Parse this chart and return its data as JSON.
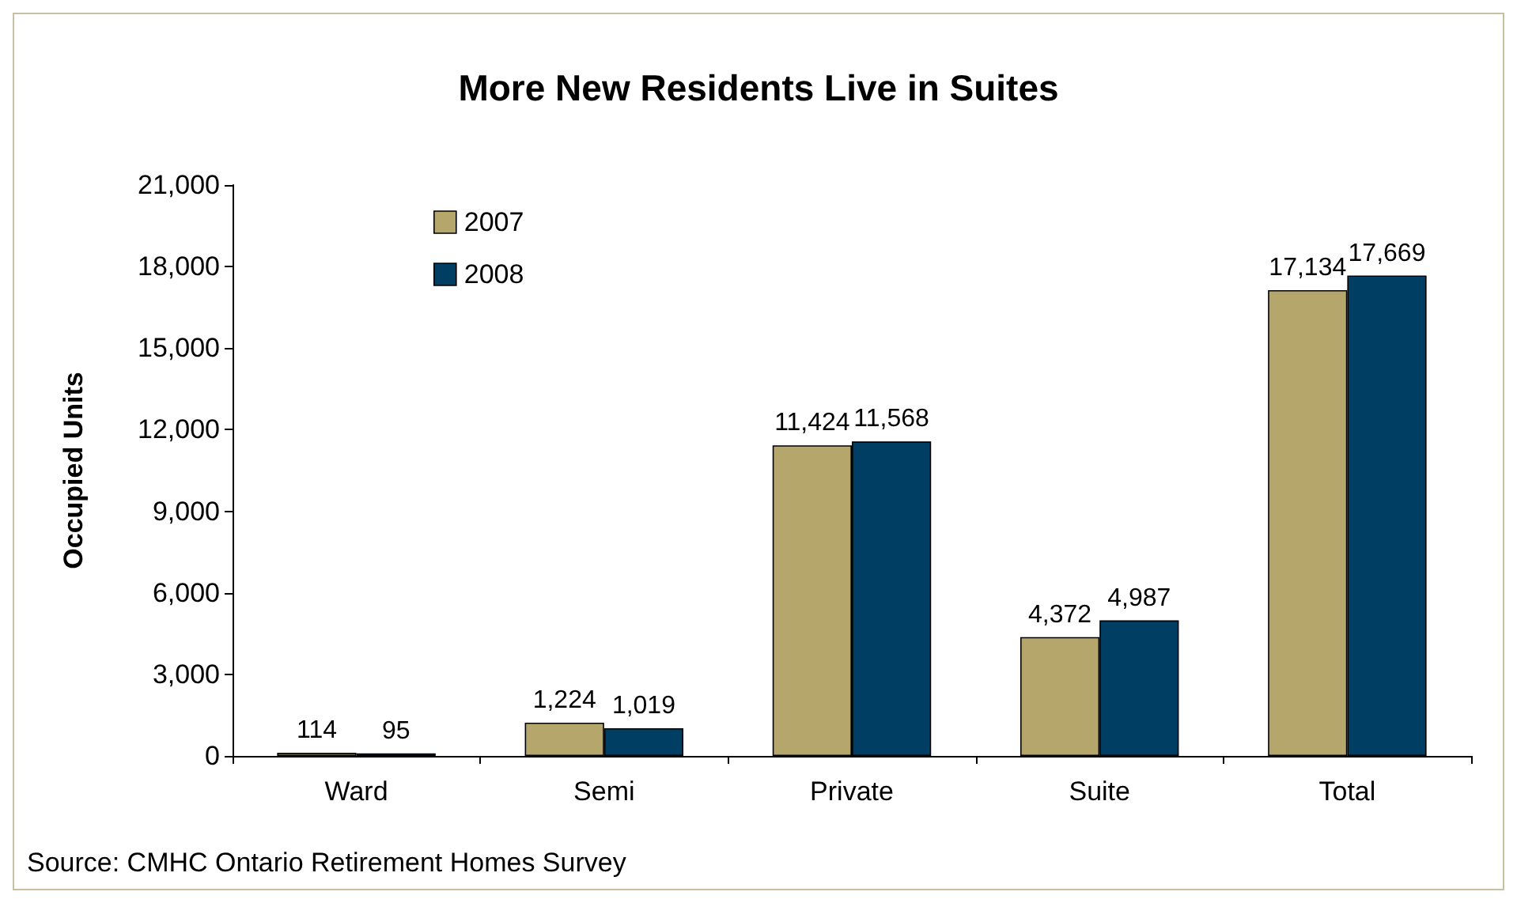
{
  "chart_data": {
    "type": "bar",
    "title": "More New Residents Live in Suites",
    "ylabel": "Occupied Units",
    "categories": [
      "Ward",
      "Semi",
      "Private",
      "Suite",
      "Total"
    ],
    "series": [
      {
        "name": "2007",
        "color": "#b5a76c",
        "values": [
          114,
          1224,
          11424,
          4372,
          17134
        ],
        "value_labels": [
          "114",
          "1,224",
          "11,424",
          "4,372",
          "17,134"
        ]
      },
      {
        "name": "2008",
        "color": "#003f63",
        "values": [
          95,
          1019,
          11568,
          4987,
          17669
        ],
        "value_labels": [
          "95",
          "1,019",
          "11,568",
          "4,987",
          "17,669"
        ]
      }
    ],
    "ylim": [
      0,
      21000
    ],
    "yticks": [
      {
        "value": 0,
        "label": "0"
      },
      {
        "value": 3000,
        "label": "3,000"
      },
      {
        "value": 6000,
        "label": "6,000"
      },
      {
        "value": 9000,
        "label": "9,000"
      },
      {
        "value": 12000,
        "label": "12,000"
      },
      {
        "value": 15000,
        "label": "15,000"
      },
      {
        "value": 18000,
        "label": "18,000"
      },
      {
        "value": 21000,
        "label": "21,000"
      }
    ],
    "grid": false,
    "legend": "top left",
    "annotations": [
      "Source: CMHC Ontario Retirement Homes Survey"
    ]
  }
}
